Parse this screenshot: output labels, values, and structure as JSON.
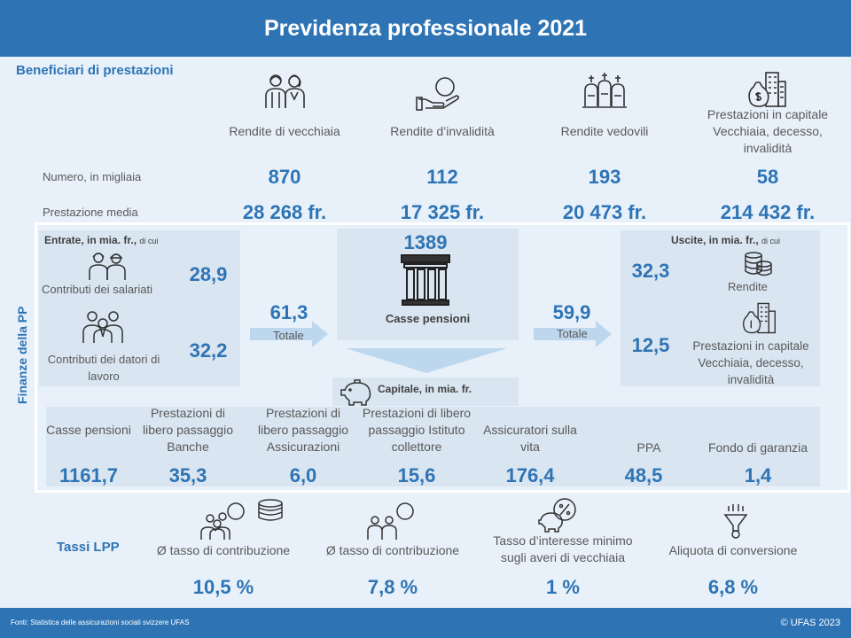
{
  "header": {
    "title": "Previdenza professionale 2021"
  },
  "beneficiari": {
    "heading": "Beneficiari di prestazioni",
    "row_label_numero": "Numero,  in migliaia",
    "row_label_media": "Prestazione media",
    "columns": [
      {
        "label": "Rendite di vecchiaia",
        "numero": "870",
        "media": "28 268 fr.",
        "icon": "elderly-couple-icon"
      },
      {
        "label": "Rendite d’invalidità",
        "numero": "112",
        "media": "17 325 fr.",
        "icon": "hand-coin-icon"
      },
      {
        "label": "Rendite vedovili",
        "numero": "193",
        "media": "20 473 fr.",
        "icon": "gravestones-icon"
      },
      {
        "label": "Prestazioni in capitale Vecchiaia, decesso, invalidità",
        "numero": "58",
        "media": "214 432 fr.",
        "icon": "money-bag-building-icon"
      }
    ]
  },
  "finanze": {
    "side_label": "Finanze della PP",
    "entrate": {
      "title": "Entrate, in mia. fr.,",
      "title_suffix": "di cui",
      "salariati_label": "Contributi dei salariati",
      "salariati_value": "28,9",
      "datori_label": "Contributi dei datori di lavoro",
      "datori_value": "32,2",
      "total_value": "61,3",
      "total_label": "Totale"
    },
    "casse": {
      "value": "1389",
      "label": "Casse pensioni"
    },
    "uscite": {
      "title": "Uscite, in mia. fr.,",
      "title_suffix": "di cui",
      "rendite_value": "32,3",
      "rendite_label": "Rendite",
      "capitale_value": "12,5",
      "capitale_label": "Prestazioni in capitale Vecchiaia, decesso, invalidità",
      "total_value": "59,9",
      "total_label": "Totale"
    },
    "capitale": {
      "title": "Capitale, in mia. fr.",
      "items": [
        {
          "label": "Casse pensioni",
          "value": "1161,7"
        },
        {
          "label": "Prestazioni di libero passaggio Banche",
          "value": "35,3"
        },
        {
          "label": "Prestazioni di libero passaggio Assicurazioni",
          "value": "6,0"
        },
        {
          "label": "Prestazioni di libero passaggio Istituto collettore",
          "value": "15,6"
        },
        {
          "label": "Assicuratori sulla vita",
          "value": "176,4"
        },
        {
          "label": "PPA",
          "value": "48,5"
        },
        {
          "label": "Fondo di garanzia",
          "value": "1,4"
        }
      ]
    }
  },
  "tassi": {
    "heading": "Tassi LPP",
    "items": [
      {
        "label": "Ø tasso di contribuzione",
        "value": "10,5 %"
      },
      {
        "label": "Ø tasso di contribuzione",
        "value": "7,8 %"
      },
      {
        "label": "Tasso d’interesse minimo sugli averi di vecchiaia",
        "value": "1 %"
      },
      {
        "label": "Aliquota di conversione",
        "value": "6,8 %"
      }
    ]
  },
  "footer": {
    "source": "Fonti: Statistica  delle  assicurazioni sociali svizzere UFAS",
    "copyright": "© UFAS 2023"
  },
  "colors": {
    "brand_blue": "#2e74b5",
    "panel": "#d9e5f1",
    "background": "#e8f1fa",
    "arrow": "#bdd7ee"
  }
}
